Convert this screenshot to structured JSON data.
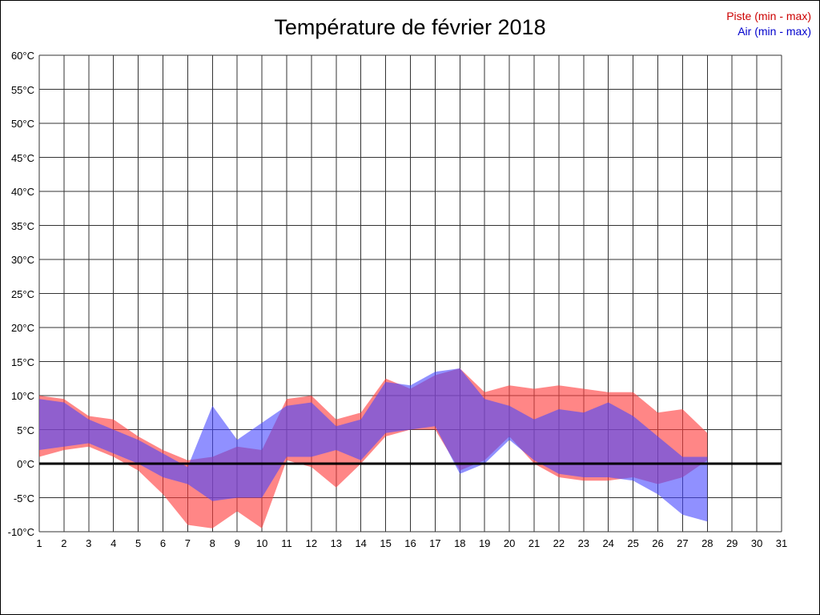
{
  "title": "Température de février 2018",
  "chart_data": {
    "type": "area",
    "subtype": "min-max-band",
    "title": "Température de février 2018",
    "xlabel": "",
    "ylabel": "",
    "xlim": [
      1,
      31
    ],
    "ylim": [
      -10,
      60
    ],
    "y_tick_step": 5,
    "grid": true,
    "zero_line": true,
    "legend_position": "top-right",
    "x": [
      1,
      2,
      3,
      4,
      5,
      6,
      7,
      8,
      9,
      10,
      11,
      12,
      13,
      14,
      15,
      16,
      17,
      18,
      19,
      20,
      21,
      22,
      23,
      24,
      25,
      26,
      27,
      28
    ],
    "x_ticks": [
      "1",
      "2",
      "3",
      "4",
      "5",
      "6",
      "7",
      "8",
      "9",
      "10",
      "11",
      "12",
      "13",
      "14",
      "15",
      "16",
      "17",
      "18",
      "19",
      "20",
      "21",
      "22",
      "23",
      "24",
      "25",
      "26",
      "27",
      "28",
      "29",
      "30",
      "31"
    ],
    "y_ticks": [
      "60°C",
      "55°C",
      "50°C",
      "45°C",
      "40°C",
      "35°C",
      "30°C",
      "25°C",
      "20°C",
      "15°C",
      "10°C",
      "5°C",
      "0°C",
      "-5°C",
      "-10°C"
    ],
    "series": [
      {
        "name": "Piste (min - max)",
        "label_color": "#cc0000",
        "fill": "rgba(255,60,60,0.62)",
        "max": [
          10,
          9.5,
          7,
          6.5,
          4,
          2,
          0.5,
          1,
          2.5,
          2,
          9.5,
          10,
          6.5,
          7.5,
          12.5,
          11,
          13,
          14,
          10.5,
          11.5,
          11,
          11.5,
          11,
          10.5,
          10.5,
          7.5,
          8,
          4.5
        ],
        "min": [
          1,
          2,
          2.5,
          1,
          -1,
          -4.5,
          -9,
          -9.5,
          -7,
          -9.5,
          0.5,
          -0.5,
          -3.5,
          0,
          4,
          5,
          5,
          -1,
          0.5,
          4,
          0,
          -2,
          -2.5,
          -2.5,
          -2,
          -3,
          -2,
          0.5
        ]
      },
      {
        "name": "Air (min - max)",
        "label_color": "#0000cc",
        "fill": "rgba(70,70,255,0.60)",
        "max": [
          9.5,
          9,
          6.5,
          5,
          3.5,
          1.5,
          -0.5,
          8.5,
          3.5,
          6,
          8.5,
          9,
          5.5,
          6.5,
          12,
          11.5,
          13.5,
          14,
          9.5,
          8.5,
          6.5,
          8,
          7.5,
          9,
          7,
          4,
          1,
          1
        ],
        "min": [
          2,
          2.5,
          3,
          1.5,
          0,
          -2,
          -3,
          -5.5,
          -5,
          -5,
          1,
          1,
          2,
          0.5,
          4.5,
          5,
          5.5,
          -1.5,
          0,
          3.5,
          0.5,
          -1.5,
          -2,
          -2,
          -2.5,
          -4.5,
          -7.5,
          -8.5
        ]
      }
    ]
  }
}
